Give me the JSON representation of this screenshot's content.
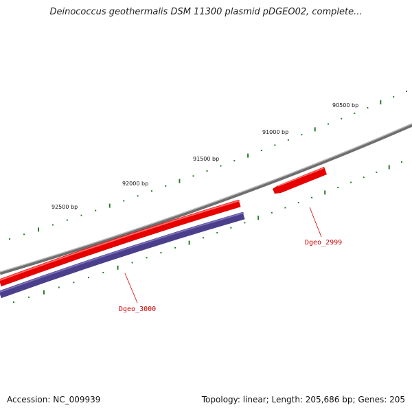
{
  "title": "Deinococcus geothermalis DSM 11300 plasmid pDGEO02, complete...",
  "accession": "Accession: NC_009939",
  "summary": "Topology: linear; Length: 205,686 bp; Genes: 205",
  "scale_labels": [
    "92500 bp",
    "92000 bp",
    "91500 bp",
    "91000 bp",
    "90500 bp"
  ],
  "genes": [
    {
      "name": "Dgeo_2999",
      "strand": "+",
      "color": "#e60000"
    },
    {
      "name": "Dgeo_3000",
      "strand": "-",
      "color": "#e60000"
    }
  ],
  "colors": {
    "backbone": "#808080",
    "forward_gene": "#e60000",
    "cds_track": "#4b3f8c",
    "tick": "#2a7a2a",
    "label": "#cc0000"
  }
}
